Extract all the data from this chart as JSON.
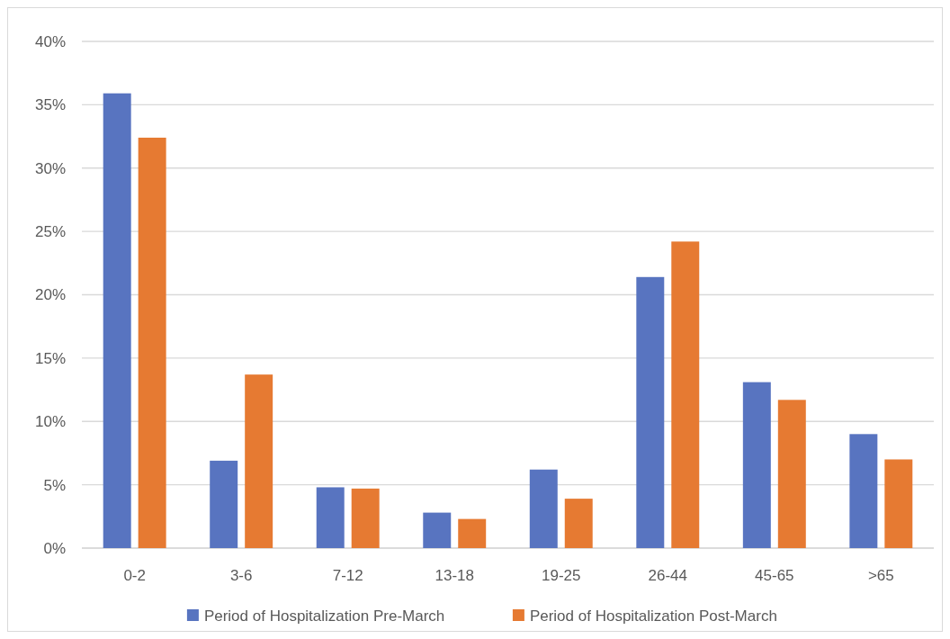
{
  "chart_data": {
    "type": "bar",
    "categories": [
      "0-2",
      "3-6",
      "7-12",
      "13-18",
      "19-25",
      "26-44",
      "45-65",
      ">65"
    ],
    "series": [
      {
        "name": "Period of Hospitalization Pre-March",
        "color": "#5874c0",
        "values": [
          35.9,
          6.9,
          4.8,
          2.8,
          6.2,
          21.4,
          13.1,
          9.0
        ]
      },
      {
        "name": "Period of Hospitalization Post-March",
        "color": "#e67a32",
        "values": [
          32.4,
          13.7,
          4.7,
          2.3,
          3.9,
          24.2,
          11.7,
          7.0
        ]
      }
    ],
    "ylim": [
      0,
      40
    ],
    "yticks": [
      {
        "value": 0,
        "label": "0%"
      },
      {
        "value": 5,
        "label": "5%"
      },
      {
        "value": 10,
        "label": "10%"
      },
      {
        "value": 15,
        "label": "15%"
      },
      {
        "value": 20,
        "label": "20%"
      },
      {
        "value": 25,
        "label": "25%"
      },
      {
        "value": 30,
        "label": "30%"
      },
      {
        "value": 35,
        "label": "35%"
      },
      {
        "value": 40,
        "label": "40%"
      }
    ],
    "grid": "y",
    "legend": "bottom"
  }
}
